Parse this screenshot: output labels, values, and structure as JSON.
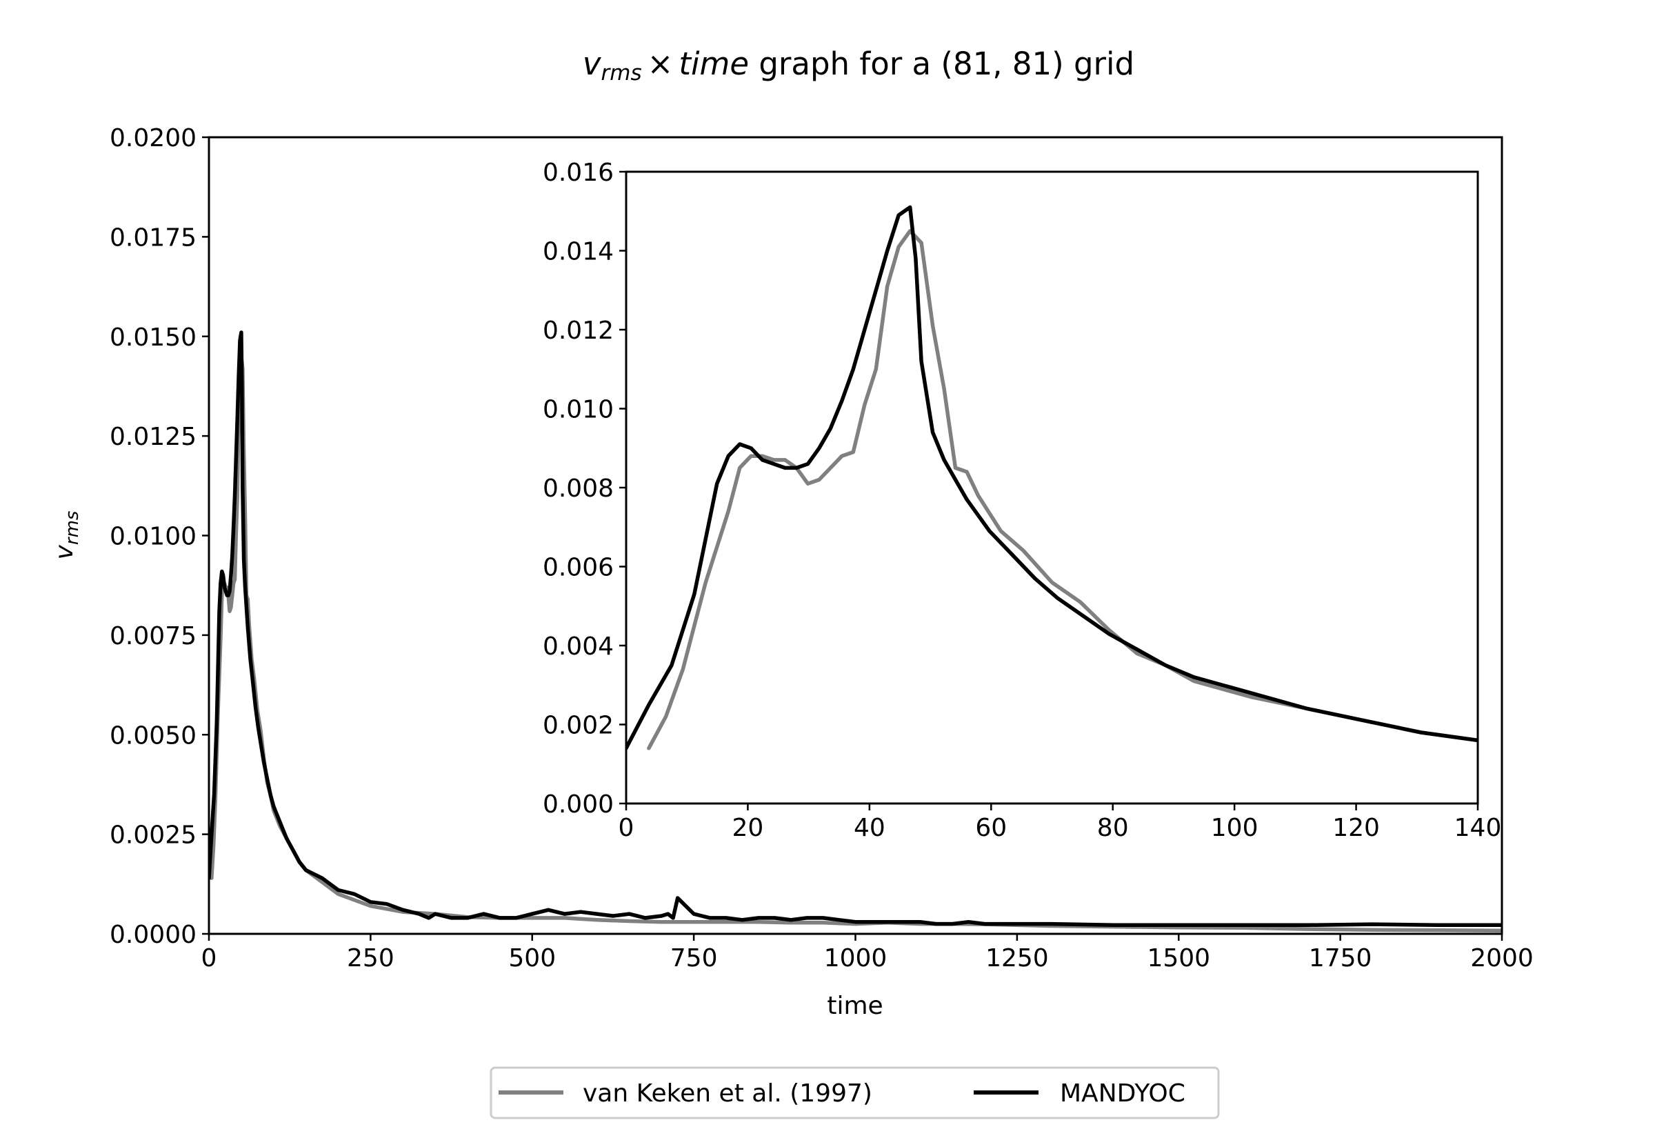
{
  "chart_data": {
    "type": "line",
    "title": {
      "var_main": "v",
      "var_sub": "rms",
      "times": "×",
      "var2": "time",
      "rest": " graph for a (81, 81) grid"
    },
    "xlabel": "time",
    "ylabel": {
      "main": "v",
      "sub": "rms"
    },
    "main": {
      "xlim": [
        0,
        2000
      ],
      "ylim": [
        0,
        0.02
      ],
      "xticks": [
        "0",
        "250",
        "500",
        "750",
        "1000",
        "1250",
        "1500",
        "1750",
        "2000"
      ],
      "yticks": [
        "0.0000",
        "0.0025",
        "0.0050",
        "0.0075",
        "0.0100",
        "0.0125",
        "0.0150",
        "0.0175",
        "0.0200"
      ]
    },
    "inset": {
      "xlim": [
        0,
        150
      ],
      "ylim": [
        0,
        0.016
      ],
      "xticks": [
        "0",
        "20",
        "40",
        "60",
        "80",
        "100",
        "120",
        "140"
      ],
      "yticks": [
        "0.000",
        "0.002",
        "0.004",
        "0.006",
        "0.008",
        "0.010",
        "0.012",
        "0.014",
        "0.016"
      ]
    },
    "legend": {
      "placement": "lower-center-outside"
    },
    "series": [
      {
        "name": "van Keken et al. (1997)",
        "color": "#808080",
        "x": [
          4,
          7,
          10,
          14,
          18,
          20,
          22,
          24,
          26,
          28,
          30,
          32,
          34,
          36,
          38,
          40,
          42,
          44,
          46,
          48,
          50,
          52,
          54,
          56,
          58,
          60,
          62,
          66,
          70,
          75,
          80,
          85,
          90,
          95,
          100,
          110,
          120,
          130,
          140,
          150,
          175,
          200,
          250,
          300,
          350,
          400,
          450,
          500,
          550,
          600,
          650,
          700,
          750,
          800,
          850,
          900,
          950,
          1000,
          1050,
          1100,
          1150,
          1200,
          1250,
          1300,
          1400,
          1500,
          1600,
          1700,
          1800,
          1900,
          2000
        ],
        "y": [
          0.0014,
          0.0022,
          0.0034,
          0.0056,
          0.0074,
          0.0085,
          0.0088,
          0.0088,
          0.0087,
          0.0087,
          0.0085,
          0.0081,
          0.0082,
          0.0085,
          0.0088,
          0.0089,
          0.0101,
          0.011,
          0.0131,
          0.0141,
          0.0145,
          0.0142,
          0.0121,
          0.0105,
          0.0085,
          0.0084,
          0.0078,
          0.0069,
          0.0064,
          0.0056,
          0.0051,
          0.0044,
          0.0038,
          0.0035,
          0.0031,
          0.0027,
          0.0024,
          0.0021,
          0.0018,
          0.0016,
          0.0013,
          0.001,
          0.0007,
          0.00055,
          0.0005,
          0.00042,
          0.0004,
          0.0004,
          0.0004,
          0.00035,
          0.00032,
          0.0003,
          0.0003,
          0.0003,
          0.0003,
          0.00028,
          0.00028,
          0.00025,
          0.00028,
          0.00025,
          0.00025,
          0.00024,
          0.00022,
          0.0002,
          0.00018,
          0.00016,
          0.00015,
          0.00012,
          0.0001,
          9e-05,
          8e-05
        ]
      },
      {
        "name": "MANDYOC",
        "color": "#000000",
        "x": [
          0,
          4,
          8,
          12,
          16,
          18,
          20,
          22,
          24,
          26,
          28,
          30,
          32,
          34,
          36,
          38,
          40,
          42,
          44,
          46,
          48,
          49,
          50,
          51,
          52,
          54,
          56,
          58,
          60,
          64,
          68,
          72,
          76,
          80,
          85,
          90,
          95,
          100,
          110,
          120,
          130,
          140,
          150,
          175,
          200,
          225,
          250,
          275,
          300,
          325,
          340,
          350,
          375,
          400,
          425,
          450,
          475,
          500,
          525,
          550,
          575,
          600,
          625,
          650,
          675,
          700,
          710,
          718,
          725,
          750,
          775,
          800,
          825,
          850,
          875,
          900,
          925,
          950,
          975,
          1000,
          1050,
          1100,
          1125,
          1150,
          1175,
          1200,
          1250,
          1300,
          1400,
          1500,
          1600,
          1700,
          1800,
          1900,
          2000
        ],
        "y": [
          0.0014,
          0.0025,
          0.0035,
          0.0053,
          0.0081,
          0.0088,
          0.0091,
          0.009,
          0.0087,
          0.0086,
          0.0085,
          0.0085,
          0.0086,
          0.009,
          0.0095,
          0.0102,
          0.011,
          0.012,
          0.013,
          0.014,
          0.0149,
          0.015,
          0.0151,
          0.0138,
          0.0112,
          0.0094,
          0.0087,
          0.0082,
          0.0077,
          0.0069,
          0.0063,
          0.0057,
          0.0052,
          0.0048,
          0.0043,
          0.0039,
          0.0035,
          0.0032,
          0.0028,
          0.0024,
          0.0021,
          0.0018,
          0.0016,
          0.0014,
          0.0011,
          0.001,
          0.0008,
          0.00075,
          0.0006,
          0.0005,
          0.0004,
          0.0005,
          0.0004,
          0.0004,
          0.0005,
          0.0004,
          0.0004,
          0.0005,
          0.0006,
          0.0005,
          0.00055,
          0.0005,
          0.00045,
          0.0005,
          0.0004,
          0.00045,
          0.0005,
          0.0004,
          0.0009,
          0.0005,
          0.0004,
          0.0004,
          0.00035,
          0.0004,
          0.0004,
          0.00035,
          0.0004,
          0.0004,
          0.00035,
          0.0003,
          0.0003,
          0.0003,
          0.00025,
          0.00025,
          0.0003,
          0.00025,
          0.00025,
          0.00025,
          0.00022,
          0.00022,
          0.00022,
          0.00022,
          0.00024,
          0.00022,
          0.00022
        ]
      }
    ]
  }
}
